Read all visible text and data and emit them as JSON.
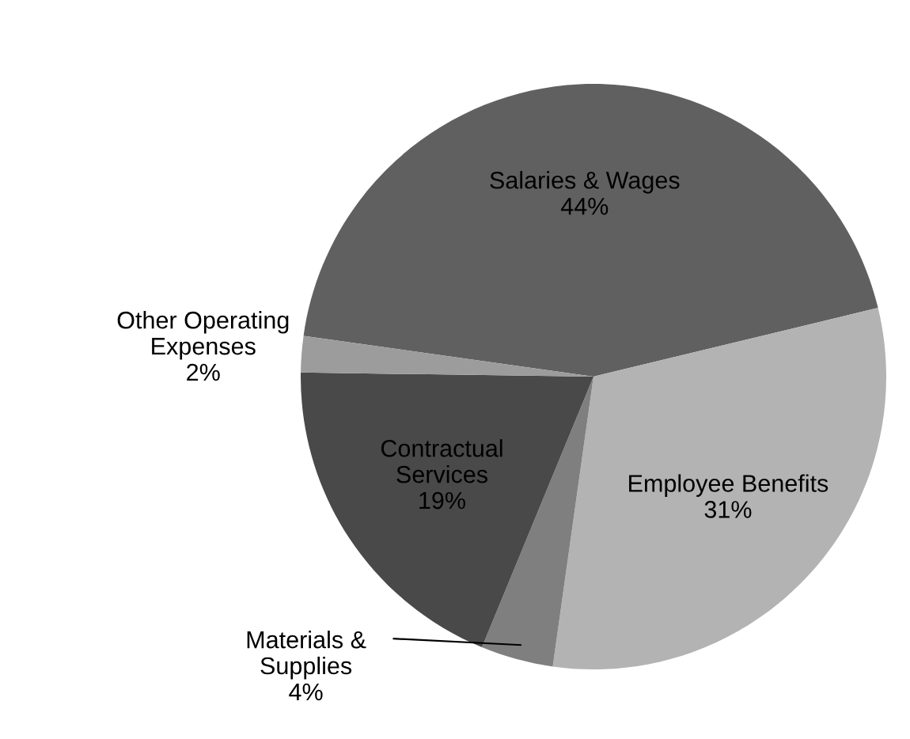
{
  "chart_data": {
    "type": "pie",
    "categories": [
      "Salaries & Wages",
      "Employee Benefits",
      "Materials &\nSupplies",
      "Contractual\nServices",
      "Other Operating\nExpenses"
    ],
    "values": [
      44,
      31,
      4,
      19,
      2
    ],
    "value_labels": [
      "44%",
      "31%",
      "4%",
      "19%",
      "2%"
    ],
    "colors": [
      "#606060",
      "#b3b3b3",
      "#7f7f7f",
      "#494949",
      "#9c9c9c"
    ],
    "legend": false
  }
}
